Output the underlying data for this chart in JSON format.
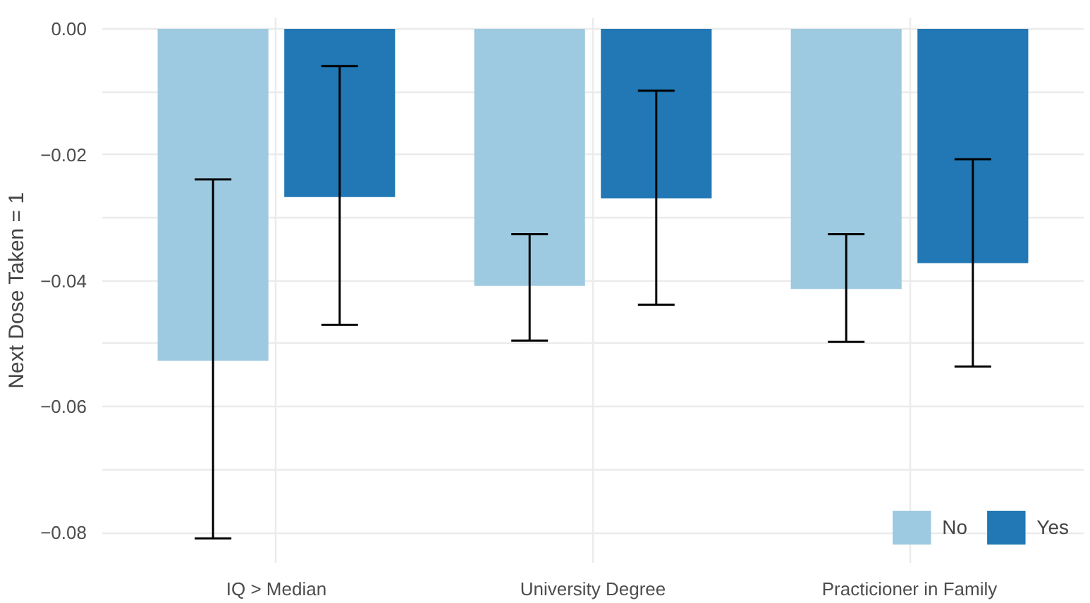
{
  "chart_data": {
    "type": "bar",
    "ylabel": "Next Dose Taken = 1",
    "categories": [
      "IQ > Median",
      "University Degree",
      "Practicioner in Family"
    ],
    "series": [
      {
        "name": "No",
        "color": "#9ecae1",
        "values": [
          -0.0527,
          -0.0408,
          -0.0413
        ],
        "errors": [
          [
            -0.0809,
            -0.0239
          ],
          [
            -0.0495,
            -0.0326
          ],
          [
            -0.0497,
            -0.0326
          ]
        ]
      },
      {
        "name": "Yes",
        "color": "#2178b4",
        "values": [
          -0.0267,
          -0.0269,
          -0.0372
        ],
        "errors": [
          [
            -0.047,
            -0.0059
          ],
          [
            -0.0438,
            -0.0098
          ],
          [
            -0.0536,
            -0.0207
          ]
        ]
      }
    ],
    "ylim": [
      -0.0848,
      0.0018
    ],
    "yticks": [
      {
        "value": -0.08,
        "label": "−0.08"
      },
      {
        "value": -0.07,
        "label": null
      },
      {
        "value": -0.06,
        "label": "−0.06"
      },
      {
        "value": -0.05,
        "label": null
      },
      {
        "value": -0.04,
        "label": "−0.04"
      },
      {
        "value": -0.03,
        "label": null
      },
      {
        "value": -0.02,
        "label": "−0.02"
      },
      {
        "value": -0.01,
        "label": null
      },
      {
        "value": 0,
        "label": "0.00"
      }
    ],
    "grid": true,
    "legend": "bottom right"
  }
}
